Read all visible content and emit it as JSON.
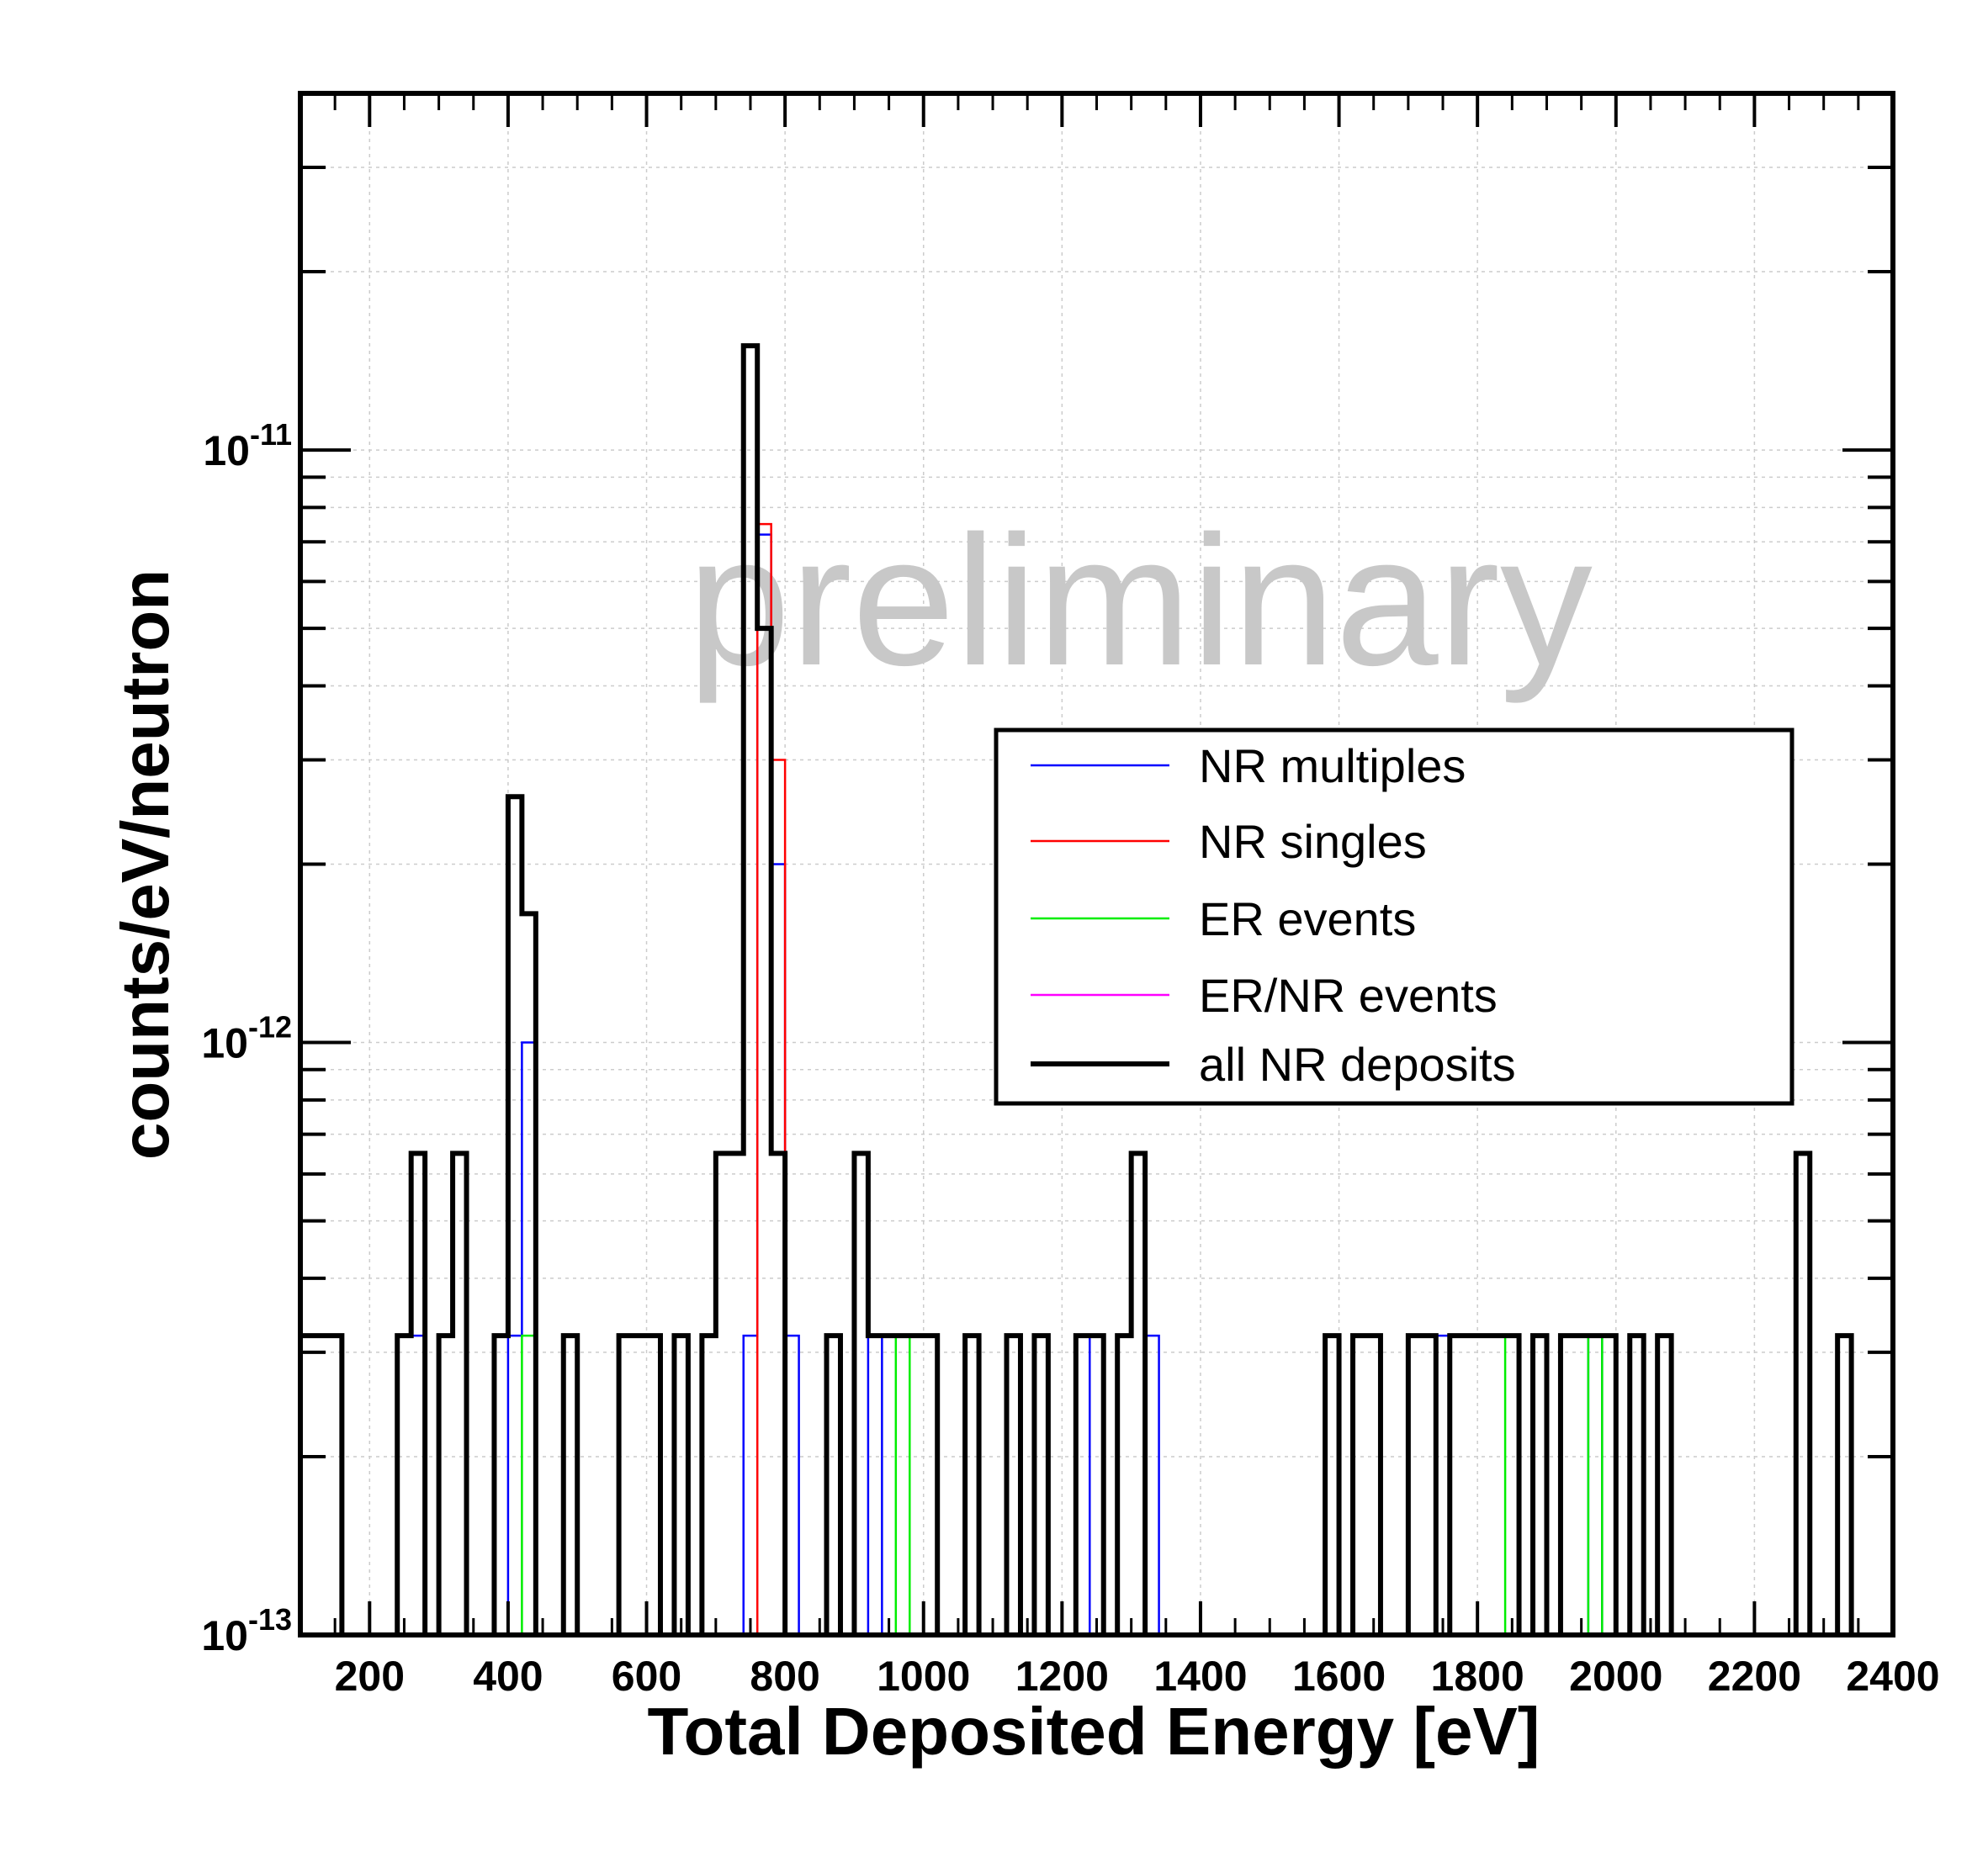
{
  "chart_data": {
    "type": "histogram",
    "title": "",
    "xlabel": "Total Deposited Energy [eV]",
    "ylabel": "counts/eV/neutron",
    "watermark": "preliminary",
    "xlim": [
      100,
      2400
    ],
    "ylim": [
      1e-13,
      4e-11
    ],
    "yscale": "log",
    "grid": true,
    "bin_width": 20,
    "x_ticks": [
      200,
      400,
      600,
      800,
      1000,
      1200,
      1400,
      1600,
      1800,
      2000,
      2200,
      2400
    ],
    "x_tick_labels": [
      "200",
      "400",
      "600",
      "800",
      "1000",
      "1200",
      "1400",
      "1600",
      "1800",
      "2000",
      "2200",
      "2400"
    ],
    "y_ticks": [
      {
        "value": 1e-13,
        "base": "10",
        "exp": "-13"
      },
      {
        "value": 1e-12,
        "base": "10",
        "exp": "-12"
      },
      {
        "value": 1e-11,
        "base": "10",
        "exp": "-11"
      }
    ],
    "legend_position": "upper-right",
    "series": [
      {
        "name": "NR multiples",
        "color": "#0000ff",
        "bins": [
          [
            240,
            3.2e-13
          ],
          [
            260,
            3.2e-13
          ],
          [
            400,
            3.2e-13
          ],
          [
            420,
            1e-12
          ],
          [
            740,
            3.2e-13
          ],
          [
            760,
            7.2e-12
          ],
          [
            780,
            2e-12
          ],
          [
            800,
            3.2e-13
          ],
          [
            920,
            3.2e-13
          ],
          [
            1240,
            3.2e-13
          ],
          [
            1320,
            3.2e-13
          ],
          [
            1740,
            3.2e-13
          ],
          [
            1960,
            3.2e-13
          ]
        ]
      },
      {
        "name": "NR singles",
        "color": "#ff0000",
        "bins": [
          [
            760,
            7.5e-12
          ],
          [
            780,
            3e-12
          ]
        ]
      },
      {
        "name": "ER events",
        "color": "#00ee00",
        "bins": [
          [
            420,
            3.2e-13
          ],
          [
            960,
            3.2e-13
          ],
          [
            1840,
            3.2e-13
          ],
          [
            1960,
            3.2e-13
          ]
        ]
      },
      {
        "name": "ER/NR events",
        "color": "#ff00ff",
        "bins": []
      },
      {
        "name": "all NR deposits",
        "color": "#000000",
        "bins": [
          [
            100,
            3.2e-13
          ],
          [
            120,
            3.2e-13
          ],
          [
            140,
            3.2e-13
          ],
          [
            240,
            3.2e-13
          ],
          [
            260,
            6.5e-13
          ],
          [
            300,
            3.2e-13
          ],
          [
            320,
            6.5e-13
          ],
          [
            380,
            3.2e-13
          ],
          [
            400,
            2.6e-12
          ],
          [
            420,
            1.65e-12
          ],
          [
            480,
            3.2e-13
          ],
          [
            560,
            3.2e-13
          ],
          [
            580,
            3.2e-13
          ],
          [
            600,
            3.2e-13
          ],
          [
            640,
            3.2e-13
          ],
          [
            680,
            3.2e-13
          ],
          [
            700,
            6.5e-13
          ],
          [
            720,
            6.5e-13
          ],
          [
            740,
            1.5e-11
          ],
          [
            760,
            5e-12
          ],
          [
            780,
            6.5e-13
          ],
          [
            860,
            3.2e-13
          ],
          [
            900,
            6.5e-13
          ],
          [
            920,
            3.2e-13
          ],
          [
            940,
            3.2e-13
          ],
          [
            960,
            3.2e-13
          ],
          [
            980,
            3.2e-13
          ],
          [
            1000,
            3.2e-13
          ],
          [
            1060,
            3.2e-13
          ],
          [
            1120,
            3.2e-13
          ],
          [
            1160,
            3.2e-13
          ],
          [
            1220,
            3.2e-13
          ],
          [
            1240,
            3.2e-13
          ],
          [
            1280,
            3.2e-13
          ],
          [
            1300,
            6.5e-13
          ],
          [
            1580,
            3.2e-13
          ],
          [
            1620,
            3.2e-13
          ],
          [
            1640,
            3.2e-13
          ],
          [
            1700,
            3.2e-13
          ],
          [
            1720,
            3.2e-13
          ],
          [
            1760,
            3.2e-13
          ],
          [
            1780,
            3.2e-13
          ],
          [
            1800,
            3.2e-13
          ],
          [
            1820,
            3.2e-13
          ],
          [
            1840,
            3.2e-13
          ],
          [
            1880,
            3.2e-13
          ],
          [
            1920,
            3.2e-13
          ],
          [
            1940,
            3.2e-13
          ],
          [
            1960,
            3.2e-13
          ],
          [
            1980,
            3.2e-13
          ],
          [
            2020,
            3.2e-13
          ],
          [
            2060,
            3.2e-13
          ],
          [
            2260,
            6.5e-13
          ],
          [
            2320,
            3.2e-13
          ]
        ]
      }
    ]
  }
}
